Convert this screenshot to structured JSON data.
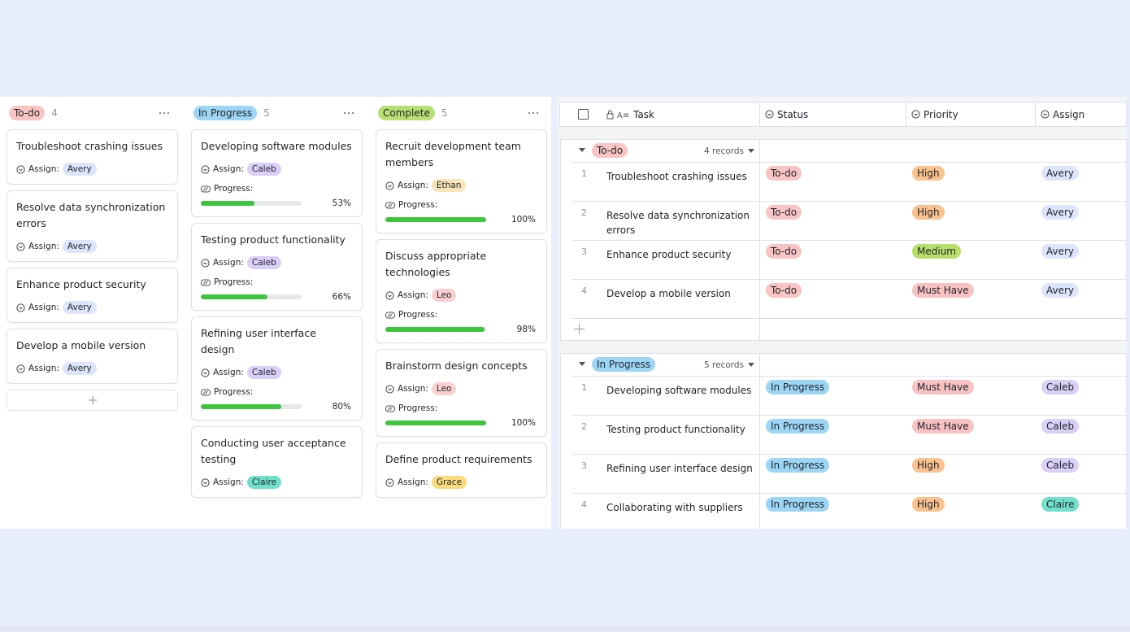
{
  "kanban": {
    "assign_label": "Assign:",
    "progress_label": "Progress:",
    "columns": [
      {
        "status": "To-do",
        "count": 4,
        "cards": [
          {
            "title": "Troubleshoot crashing issues",
            "assignee": "Avery"
          },
          {
            "title": "Resolve data synchronization errors",
            "assignee": "Avery"
          },
          {
            "title": "Enhance product security",
            "assignee": "Avery"
          },
          {
            "title": "Develop a mobile version",
            "assignee": "Avery"
          }
        ]
      },
      {
        "status": "In Progress",
        "count": 5,
        "cards": [
          {
            "title": "Developing software modules",
            "assignee": "Caleb",
            "progress": {
              "value": 53,
              "label": "53%"
            }
          },
          {
            "title": "Testing product functionality",
            "assignee": "Caleb",
            "progress": {
              "value": 66,
              "label": "66%"
            }
          },
          {
            "title": "Refining user interface design",
            "assignee": "Caleb",
            "progress": {
              "value": 80,
              "label": "80%"
            }
          },
          {
            "title": "Conducting user acceptance testing",
            "assignee": "Claire"
          }
        ]
      },
      {
        "status": "Complete",
        "count": 5,
        "cards": [
          {
            "title": "Recruit development team members",
            "assignee": "Ethan",
            "progress": {
              "value": 100,
              "label": "100%"
            }
          },
          {
            "title": "Discuss appropriate technologies",
            "assignee": "Leo",
            "progress": {
              "value": 98,
              "label": "98%"
            }
          },
          {
            "title": "Brainstorm design concepts",
            "assignee": "Leo",
            "progress": {
              "value": 100,
              "label": "100%"
            }
          },
          {
            "title": "Define product requirements",
            "assignee": "Grace"
          }
        ]
      }
    ]
  },
  "table": {
    "columns": [
      "Task",
      "Status",
      "Priority",
      "Assign"
    ],
    "groups": [
      {
        "status": "To-do",
        "records": "4 records",
        "rows": [
          {
            "index": 1,
            "task": "Troubleshoot crashing issues",
            "status": "To-do",
            "priority": "High",
            "assign": "Avery"
          },
          {
            "index": 2,
            "task": "Resolve data synchronization errors",
            "status": "To-do",
            "priority": "High",
            "assign": "Avery"
          },
          {
            "index": 3,
            "task": "Enhance product security",
            "status": "To-do",
            "priority": "Medium",
            "assign": "Avery"
          },
          {
            "index": 4,
            "task": "Develop a mobile version",
            "status": "To-do",
            "priority": "Must Have",
            "assign": "Avery"
          }
        ]
      },
      {
        "status": "In Progress",
        "records": "5 records",
        "rows": [
          {
            "index": 1,
            "task": "Developing software modules",
            "status": "In Progress",
            "priority": "Must Have",
            "assign": "Caleb"
          },
          {
            "index": 2,
            "task": "Testing product functionality",
            "status": "In Progress",
            "priority": "Must Have",
            "assign": "Caleb"
          },
          {
            "index": 3,
            "task": "Refining user interface design",
            "status": "In Progress",
            "priority": "High",
            "assign": "Caleb"
          },
          {
            "index": 4,
            "task": "Collaborating with suppliers",
            "status": "In Progress",
            "priority": "High",
            "assign": "Claire"
          }
        ]
      }
    ]
  },
  "tag_colors": {
    "To-do": "#f9c4c4",
    "In Progress": "#9dd6f5",
    "Complete": "#b7df72",
    "High": "#f9c28f",
    "Medium": "#b8df6a",
    "Must Have": "#f9c2c2",
    "Avery": "#dde5fb",
    "Caleb": "#dacff7",
    "Claire": "#70e0cb",
    "Ethan": "#f8e5b8",
    "Leo": "#fbcfcf",
    "Grace": "#f9da7d"
  }
}
